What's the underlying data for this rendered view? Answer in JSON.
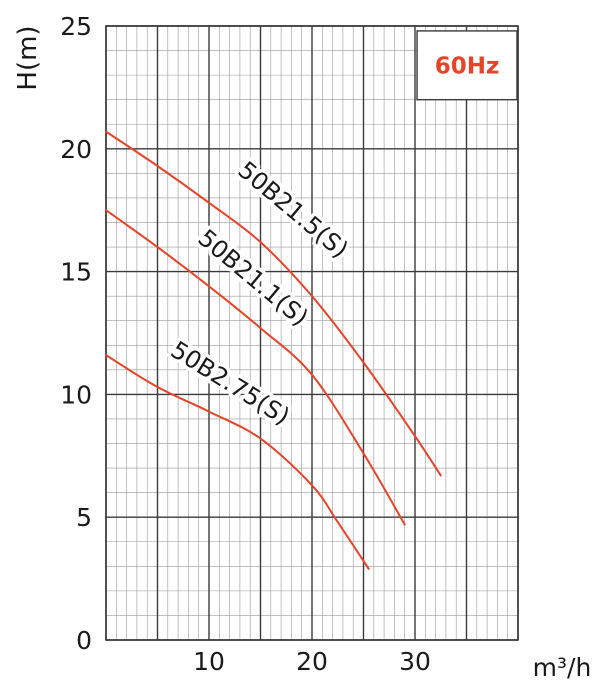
{
  "chart_data": {
    "type": "line",
    "title": "",
    "badge": "60Hz",
    "xlabel": "m³/h",
    "ylabel": "H(m)",
    "xlim": [
      0,
      40
    ],
    "ylim": [
      0,
      25
    ],
    "xticks": [
      10,
      20,
      30
    ],
    "yticks": [
      0,
      5,
      10,
      15,
      20,
      25
    ],
    "grid": true,
    "colors": {
      "curve": "#e2452a",
      "badge": "#e2452a",
      "grid_major": "#3a3a3a",
      "grid_minor": "#9a9a9a"
    },
    "series": [
      {
        "name": "50B21.5(S)",
        "x": [
          0,
          5,
          10,
          15,
          20,
          25,
          30,
          32.5
        ],
        "y": [
          20.7,
          19.3,
          17.8,
          16.2,
          14.0,
          11.3,
          8.3,
          6.7
        ]
      },
      {
        "name": "50B21.1(S)",
        "x": [
          0,
          5,
          10,
          15,
          20,
          25,
          29
        ],
        "y": [
          17.5,
          16.0,
          14.4,
          12.7,
          10.8,
          7.6,
          4.7
        ]
      },
      {
        "name": "50B2.75(S)",
        "x": [
          0,
          5,
          10,
          15,
          20,
          22.5,
          25.5
        ],
        "y": [
          11.6,
          10.3,
          9.3,
          8.2,
          6.3,
          4.8,
          2.9
        ]
      }
    ]
  }
}
